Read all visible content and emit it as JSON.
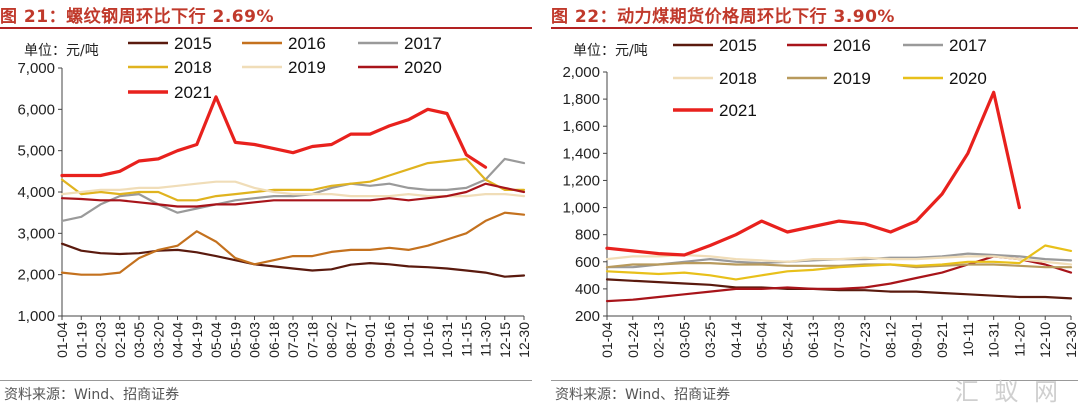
{
  "charts": {
    "left": {
      "figure_title": "图 21：螺纹钢周环比下行 2.69%",
      "unit": "单位：元/吨",
      "source": "资料来源：Wind、招商证券"
    },
    "right": {
      "figure_title": "图 22：动力煤期货价格周环比下行 3.90%",
      "unit": "单位：元/吨",
      "source": "资料来源：Wind、招商证券"
    }
  },
  "watermark": "汇 蚁 网",
  "chart_data": [
    {
      "type": "line",
      "title": "螺纹钢周环比下行 2.69%",
      "ylabel": "元/吨",
      "ylim": [
        1000,
        7000
      ],
      "yticks": [
        1000,
        2000,
        3000,
        4000,
        5000,
        6000,
        7000
      ],
      "ytick_labels": [
        "1,000",
        "2,000",
        "3,000",
        "4,000",
        "5,000",
        "6,000",
        "7,000"
      ],
      "categories": [
        "01-04",
        "01-19",
        "02-03",
        "02-18",
        "03-05",
        "03-20",
        "04-04",
        "04-19",
        "05-04",
        "05-19",
        "06-03",
        "06-18",
        "07-03",
        "07-18",
        "08-02",
        "08-17",
        "09-01",
        "09-16",
        "10-01",
        "10-16",
        "10-31",
        "11-15",
        "11-30",
        "12-15",
        "12-30"
      ],
      "legend_position": "top",
      "series": [
        {
          "name": "2015",
          "color": "#5a1a0e",
          "width": 2.2,
          "values": [
            2750,
            2580,
            2520,
            2500,
            2520,
            2580,
            2600,
            2540,
            2450,
            2350,
            2250,
            2200,
            2150,
            2100,
            2130,
            2240,
            2280,
            2250,
            2200,
            2180,
            2150,
            2100,
            2050,
            1950,
            1980
          ]
        },
        {
          "name": "2016",
          "color": "#c4711e",
          "width": 2.2,
          "values": [
            2050,
            2000,
            2000,
            2050,
            2400,
            2600,
            2700,
            3050,
            2800,
            2400,
            2250,
            2350,
            2450,
            2450,
            2550,
            2600,
            2600,
            2650,
            2600,
            2700,
            2850,
            3000,
            3300,
            3500,
            3450
          ]
        },
        {
          "name": "2017",
          "color": "#9a9a9a",
          "width": 2.2,
          "values": [
            3300,
            3400,
            3700,
            3900,
            3950,
            3700,
            3500,
            3600,
            3700,
            3800,
            3850,
            3900,
            3900,
            3950,
            4100,
            4200,
            4150,
            4200,
            4100,
            4050,
            4050,
            4100,
            4300,
            4800,
            4700
          ]
        },
        {
          "name": "2018",
          "color": "#e0b31f",
          "width": 2.2,
          "values": [
            4300,
            3950,
            4000,
            3950,
            4000,
            4000,
            3800,
            3800,
            3900,
            3950,
            4000,
            4050,
            4050,
            4050,
            4150,
            4200,
            4250,
            4400,
            4550,
            4700,
            4750,
            4800,
            4300,
            4050,
            4050
          ]
        },
        {
          "name": "2019",
          "color": "#f0ddb8",
          "width": 2.2,
          "values": [
            3950,
            4000,
            4050,
            4050,
            4100,
            4100,
            4150,
            4200,
            4250,
            4250,
            4100,
            4000,
            3950,
            3950,
            3950,
            3900,
            3900,
            3900,
            3950,
            3900,
            3900,
            3900,
            3950,
            3950,
            3900
          ]
        },
        {
          "name": "2020",
          "color": "#a8141a",
          "width": 2.2,
          "values": [
            3850,
            3830,
            3800,
            3800,
            3750,
            3700,
            3650,
            3650,
            3700,
            3700,
            3750,
            3800,
            3800,
            3800,
            3800,
            3800,
            3800,
            3850,
            3800,
            3850,
            3900,
            4000,
            4200,
            4100,
            4000
          ]
        },
        {
          "name": "2021",
          "color": "#e8211d",
          "width": 3.2,
          "values": [
            4400,
            4400,
            4400,
            4500,
            4750,
            4800,
            5000,
            5150,
            6300,
            5200,
            5150,
            5050,
            4950,
            5100,
            5150,
            5400,
            5400,
            5600,
            5750,
            6000,
            5900,
            4900,
            4600,
            null,
            null
          ]
        }
      ]
    },
    {
      "type": "line",
      "title": "动力煤期货价格周环比下行 3.90%",
      "ylabel": "元/吨",
      "ylim": [
        200,
        2000
      ],
      "yticks": [
        200,
        400,
        600,
        800,
        1000,
        1200,
        1400,
        1600,
        1800,
        2000
      ],
      "ytick_labels": [
        "200",
        "400",
        "600",
        "800",
        "1,000",
        "1,200",
        "1,400",
        "1,600",
        "1,800",
        "2,000"
      ],
      "categories": [
        "01-04",
        "01-24",
        "02-13",
        "03-05",
        "03-25",
        "04-14",
        "05-04",
        "05-24",
        "06-13",
        "07-03",
        "07-23",
        "08-12",
        "09-01",
        "09-21",
        "10-11",
        "10-31",
        "11-20",
        "12-10",
        "12-30"
      ],
      "legend_position": "top",
      "series": [
        {
          "name": "2015",
          "color": "#5a1a0e",
          "width": 2.2,
          "values": [
            470,
            460,
            450,
            440,
            430,
            410,
            410,
            400,
            400,
            390,
            390,
            380,
            380,
            370,
            360,
            350,
            340,
            340,
            330
          ]
        },
        {
          "name": "2016",
          "color": "#a8141a",
          "width": 2.2,
          "values": [
            310,
            320,
            340,
            360,
            380,
            400,
            400,
            410,
            400,
            400,
            410,
            440,
            480,
            520,
            580,
            640,
            620,
            580,
            520
          ]
        },
        {
          "name": "2017",
          "color": "#9a9a9a",
          "width": 2.2,
          "values": [
            560,
            560,
            580,
            600,
            620,
            600,
            590,
            600,
            610,
            620,
            620,
            630,
            630,
            640,
            660,
            650,
            640,
            620,
            610
          ]
        },
        {
          "name": "2018",
          "color": "#f0ddb8",
          "width": 2.2,
          "values": [
            620,
            640,
            640,
            650,
            640,
            620,
            610,
            600,
            620,
            620,
            630,
            620,
            620,
            630,
            640,
            640,
            620,
            600,
            580
          ]
        },
        {
          "name": "2019",
          "color": "#b89a5c",
          "width": 2.2,
          "values": [
            560,
            580,
            580,
            590,
            590,
            580,
            580,
            570,
            570,
            570,
            580,
            580,
            560,
            570,
            580,
            580,
            570,
            560,
            560
          ]
        },
        {
          "name": "2020",
          "color": "#e8c01a",
          "width": 2.2,
          "values": [
            530,
            520,
            510,
            520,
            500,
            470,
            500,
            530,
            540,
            560,
            570,
            580,
            570,
            580,
            600,
            600,
            590,
            720,
            680
          ]
        },
        {
          "name": "2021",
          "color": "#e8211d",
          "width": 3.2,
          "values": [
            700,
            680,
            660,
            650,
            720,
            800,
            900,
            820,
            860,
            900,
            880,
            820,
            900,
            1100,
            1400,
            1850,
            1000,
            null,
            null
          ]
        }
      ]
    }
  ]
}
